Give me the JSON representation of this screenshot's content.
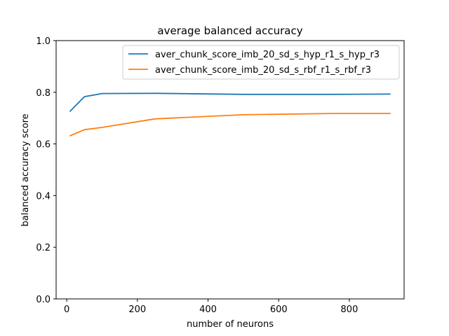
{
  "chart_data": {
    "type": "line",
    "title": "average balanced accuracy",
    "xlabel": "number of neurons",
    "ylabel": "balanced accuracy score",
    "xlim": [
      -30,
      955
    ],
    "ylim": [
      0.0,
      1.0
    ],
    "xticks": [
      0,
      200,
      400,
      600,
      800
    ],
    "xtick_labels": [
      "0",
      "200",
      "400",
      "600",
      "800"
    ],
    "yticks": [
      0.0,
      0.2,
      0.4,
      0.6,
      0.8,
      1.0
    ],
    "ytick_labels": [
      "0.0",
      "0.2",
      "0.4",
      "0.6",
      "0.8",
      "1.0"
    ],
    "grid": false,
    "legend_position": "top-right",
    "x": [
      10,
      50,
      100,
      250,
      500,
      750,
      915
    ],
    "series": [
      {
        "name": "aver_chunk_score_imb_20_sd_s_hyp_r1_s_hyp_r3",
        "color": "#1f77b4",
        "values": [
          0.727,
          0.783,
          0.795,
          0.796,
          0.792,
          0.792,
          0.793
        ]
      },
      {
        "name": "aver_chunk_score_imb_20_sd_s_rbf_r1_s_rbf_r3",
        "color": "#ff7f0e",
        "values": [
          0.632,
          0.655,
          0.664,
          0.697,
          0.713,
          0.718,
          0.718
        ]
      }
    ]
  }
}
